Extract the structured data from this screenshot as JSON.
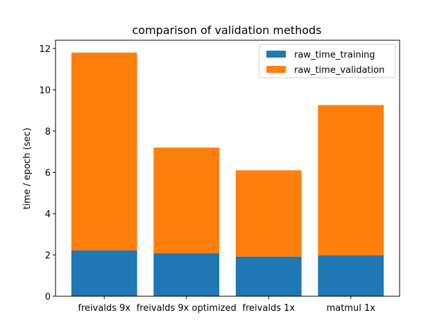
{
  "chart_data": {
    "type": "bar",
    "stacked": true,
    "title": "comparison of validation methods",
    "xlabel": "",
    "ylabel": "time / epoch (sec)",
    "categories": [
      "freivalds 9x",
      "freivalds 9x optimized",
      "freivalds 1x",
      "matmul 1x"
    ],
    "series": [
      {
        "name": "raw_time_training",
        "color": "#1f77b4",
        "values": [
          2.22,
          2.08,
          1.92,
          1.98
        ]
      },
      {
        "name": "raw_time_validation",
        "color": "#ff7f0e",
        "values": [
          9.58,
          5.12,
          4.18,
          7.28
        ]
      }
    ],
    "ylim": [
      0,
      12.4
    ],
    "yticks": [
      0,
      2,
      4,
      6,
      8,
      10,
      12
    ],
    "legend_position": "top-right",
    "grid": false
  }
}
